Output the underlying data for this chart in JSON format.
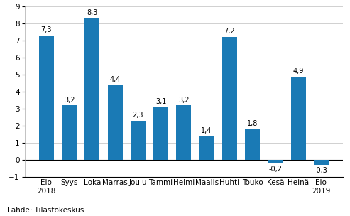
{
  "categories": [
    "Elo\n2018",
    "Syys",
    "Loka",
    "Marras",
    "Joulu",
    "Tammi",
    "Helmi",
    "Maalis",
    "Huhti",
    "Touko",
    "Kesä",
    "Heinä",
    "Elo\n2019"
  ],
  "values": [
    7.3,
    3.2,
    8.3,
    4.4,
    2.3,
    3.1,
    3.2,
    1.4,
    7.2,
    1.8,
    -0.2,
    4.9,
    -0.3
  ],
  "bar_color": "#1a7ab5",
  "ylim": [
    -1,
    9
  ],
  "yticks": [
    -1,
    0,
    1,
    2,
    3,
    4,
    5,
    6,
    7,
    8,
    9
  ],
  "source": "Lähde: Tilastokeskus",
  "background_color": "#ffffff",
  "grid_color": "#d0d0d0",
  "label_fontsize": 7.0,
  "source_fontsize": 7.5,
  "tick_fontsize": 7.5,
  "bar_width": 0.65
}
